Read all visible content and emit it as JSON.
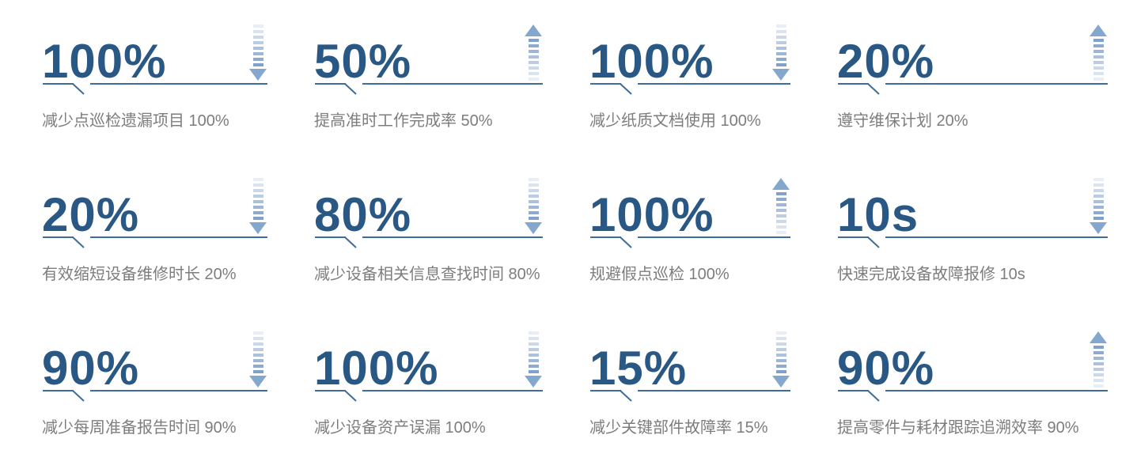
{
  "page": {
    "background": "#ffffff"
  },
  "colors": {
    "stat_number": "#2a5884",
    "underline": "#3e6d9c",
    "caption": "#7d7d7d",
    "arrow_bar_rgb": "96,137,188",
    "arrow_head": "#84a7ce"
  },
  "icons": {
    "up": "dashed-arrow-up-icon",
    "down": "dashed-arrow-down-icon"
  },
  "stats": [
    {
      "value": "100%",
      "direction": "down",
      "label": "减少点巡检遗漏项目 100%"
    },
    {
      "value": "50%",
      "direction": "up",
      "label": "提高准时工作完成率 50%"
    },
    {
      "value": "100%",
      "direction": "down",
      "label": "减少纸质文档使用 100%"
    },
    {
      "value": "20%",
      "direction": "up",
      "label": "遵守维保计划 20%"
    },
    {
      "value": "20%",
      "direction": "down",
      "label": "有效缩短设备维修时长 20%"
    },
    {
      "value": "80%",
      "direction": "down",
      "label": "减少设备相关信息查找时间 80%"
    },
    {
      "value": "100%",
      "direction": "up",
      "label": "规避假点巡检 100%"
    },
    {
      "value": "10s",
      "direction": "down",
      "label": "快速完成设备故障报修 10s"
    },
    {
      "value": "90%",
      "direction": "down",
      "label": "减少每周准备报告时间 90%"
    },
    {
      "value": "100%",
      "direction": "down",
      "label": "减少设备资产误漏 100%"
    },
    {
      "value": "15%",
      "direction": "down",
      "label": "减少关键部件故障率 15%"
    },
    {
      "value": "90%",
      "direction": "up",
      "label": "提高零件与耗材跟踪追溯效率 90%"
    }
  ]
}
